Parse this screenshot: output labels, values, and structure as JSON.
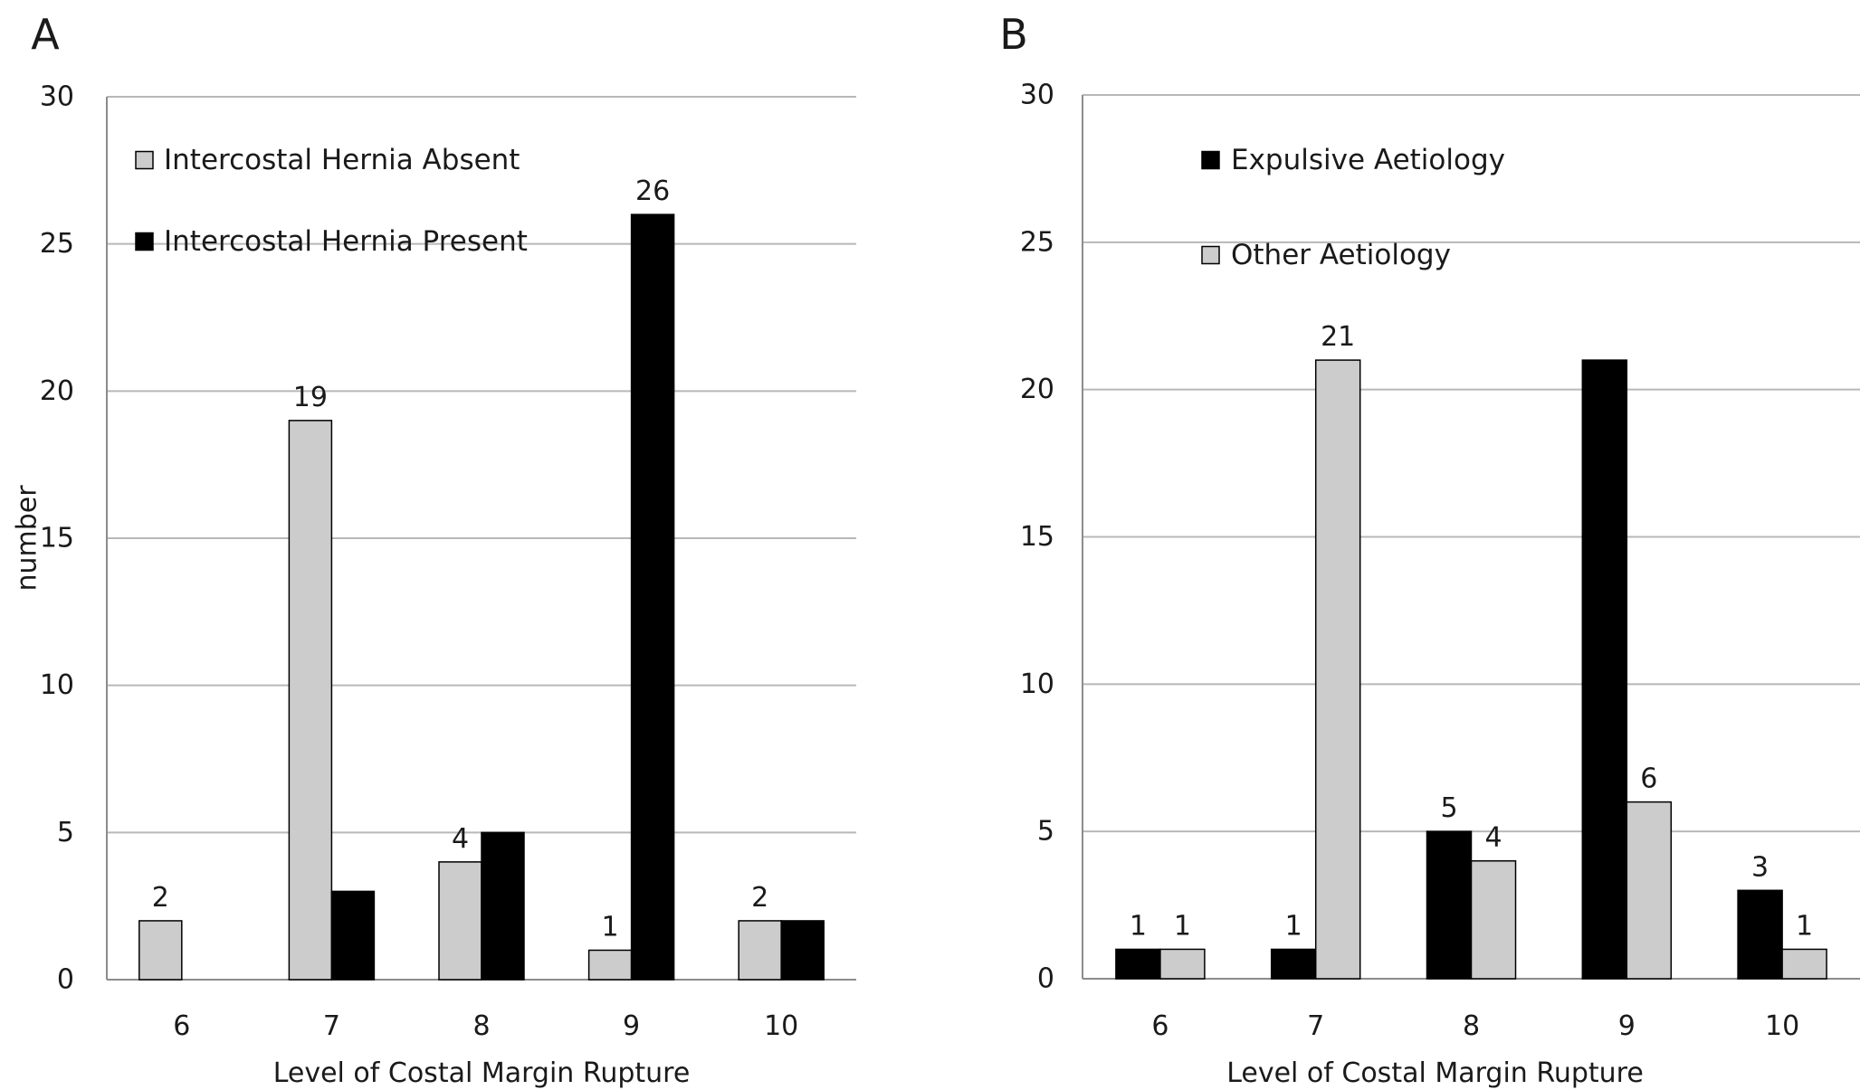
{
  "chart_data": [
    {
      "type": "bar",
      "panel_label": "A",
      "title": "",
      "xlabel": "Level of Costal Margin Rupture",
      "ylabel": "number",
      "ylim": [
        0,
        30
      ],
      "yticks": [
        "0",
        "5",
        "10",
        "15",
        "20",
        "25",
        "30"
      ],
      "categories": [
        "6",
        "7",
        "8",
        "9",
        "10"
      ],
      "grid": "horizontal",
      "legend_position": "top-left",
      "series": [
        {
          "name": "Intercostal Hernia Absent",
          "color": "#cccccc",
          "values": [
            2,
            19,
            4,
            1,
            2
          ],
          "labels": [
            "2",
            "19",
            "4",
            "1",
            "2"
          ]
        },
        {
          "name": "Intercostal Hernia Present",
          "color": "#000000",
          "values": [
            0,
            3,
            5,
            26,
            2
          ],
          "labels": [
            "",
            "",
            "",
            "26",
            ""
          ]
        }
      ]
    },
    {
      "type": "bar",
      "panel_label": "B",
      "title": "",
      "xlabel": "Level of Costal Margin Rupture",
      "ylabel": "",
      "ylim": [
        0,
        30
      ],
      "yticks": [
        "0",
        "5",
        "10",
        "15",
        "20",
        "25",
        "30"
      ],
      "categories": [
        "6",
        "7",
        "8",
        "9",
        "10"
      ],
      "grid": "horizontal",
      "legend_position": "top-left",
      "series": [
        {
          "name": "Expulsive Aetiology",
          "color": "#000000",
          "values": [
            1,
            1,
            5,
            21,
            3
          ],
          "labels": [
            "1",
            "1",
            "5",
            "",
            "3"
          ]
        },
        {
          "name": "Other Aetiology",
          "color": "#cccccc",
          "values": [
            1,
            21,
            4,
            6,
            1
          ],
          "labels": [
            "1",
            "21",
            "4",
            "6",
            "1"
          ]
        }
      ]
    }
  ]
}
